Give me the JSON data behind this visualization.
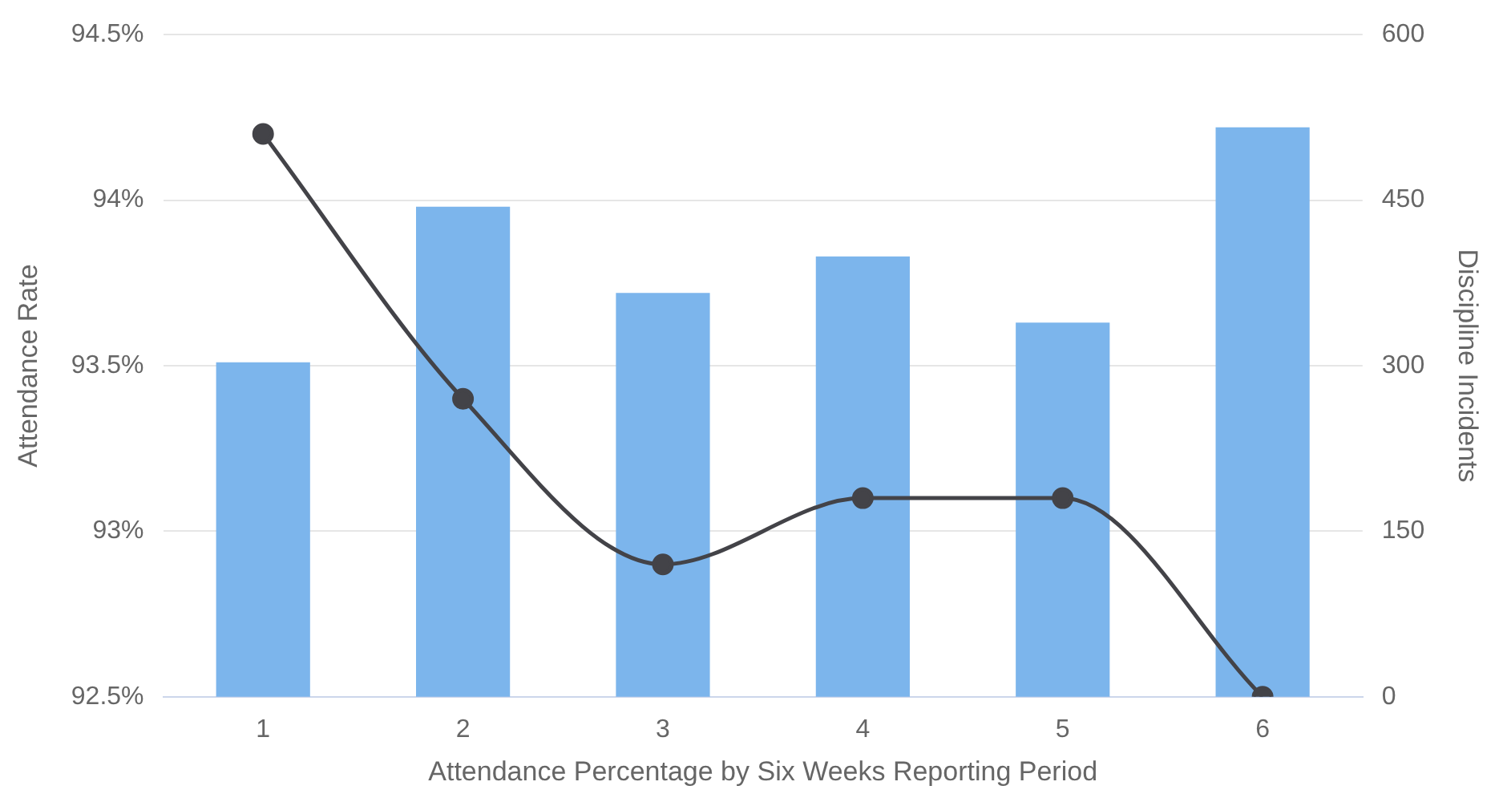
{
  "chart_data": {
    "type": "bar",
    "xlabel": "Attendance Percentage by Six Weeks Reporting Period",
    "ylabel": "Attendance Rate",
    "y2label": "Discipline Incidents",
    "categories": [
      "1",
      "2",
      "3",
      "4",
      "5",
      "6"
    ],
    "series": [
      {
        "color": "#7cb5ec",
        "values": [
          93.51,
          93.98,
          93.72,
          93.83,
          93.63,
          94.22
        ]
      },
      {
        "type": "line",
        "axis": "y2",
        "color": "#434348",
        "marker": "circle",
        "values": [
          510,
          270,
          120,
          180,
          180,
          0
        ]
      }
    ],
    "ylim": [
      92.5,
      94.5
    ],
    "yticks": [
      {
        "value": 92.5,
        "label": "92.5%"
      },
      {
        "value": 93,
        "label": "93%"
      },
      {
        "value": 93.5,
        "label": "93.5%"
      },
      {
        "value": 94,
        "label": "94%"
      },
      {
        "value": 94.5,
        "label": "94.5%"
      }
    ],
    "y2lim": [
      0,
      600
    ],
    "y2ticks": [
      0,
      150,
      300,
      450,
      600
    ],
    "grid": "y",
    "legend": false
  }
}
